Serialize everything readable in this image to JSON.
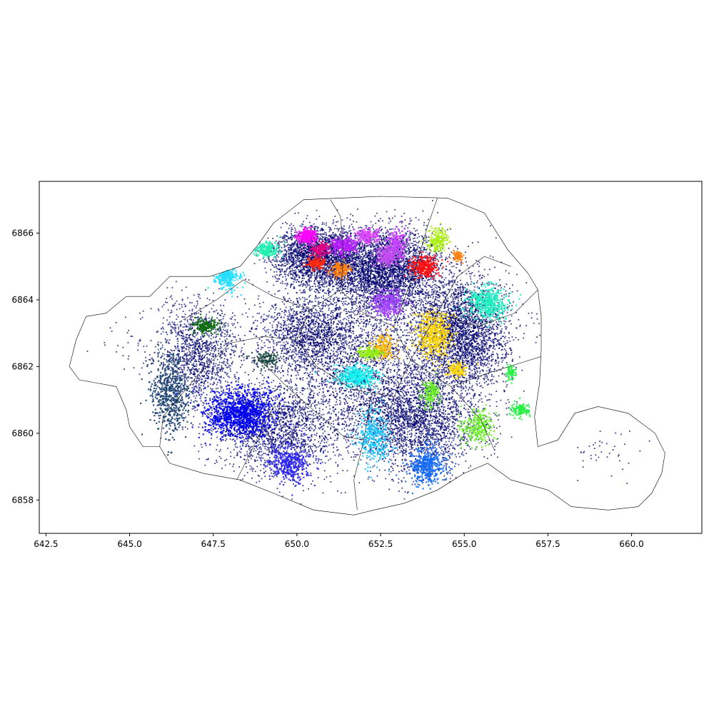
{
  "chart_data": {
    "type": "scatter",
    "title": "",
    "xlabel": "",
    "ylabel": "",
    "xlim": [
      642.3,
      662.1
    ],
    "ylim": [
      6857.0,
      6867.55
    ],
    "xticks": [
      642.5,
      645.0,
      647.5,
      650.0,
      652.5,
      655.0,
      657.5,
      660.0
    ],
    "xtick_labels": [
      "642.5",
      "645.0",
      "647.5",
      "650.0",
      "652.5",
      "655.0",
      "657.5",
      "660.0"
    ],
    "yticks": [
      6858,
      6860,
      6862,
      6864,
      6866
    ],
    "ytick_labels": [
      "6858",
      "6860",
      "6862",
      "6864",
      "6866"
    ],
    "grid": false,
    "legend": "none",
    "outline": [
      [
        650.2,
        6867.0
      ],
      [
        652.5,
        6867.1
      ],
      [
        654.5,
        6867.05
      ],
      [
        655.6,
        6866.6
      ],
      [
        656.3,
        6865.5
      ],
      [
        656.9,
        6864.8
      ],
      [
        657.2,
        6864.3
      ],
      [
        657.3,
        6863.5
      ],
      [
        657.3,
        6862.5
      ],
      [
        657.25,
        6861.5
      ],
      [
        657.1,
        6860.5
      ],
      [
        657.2,
        6859.6
      ],
      [
        657.8,
        6859.8
      ],
      [
        658.3,
        6860.6
      ],
      [
        659.0,
        6860.8
      ],
      [
        659.9,
        6860.6
      ],
      [
        660.7,
        6860.0
      ],
      [
        661.0,
        6859.4
      ],
      [
        660.9,
        6858.8
      ],
      [
        660.6,
        6858.2
      ],
      [
        660.2,
        6857.8
      ],
      [
        659.3,
        6857.7
      ],
      [
        658.2,
        6857.8
      ],
      [
        657.5,
        6858.3
      ],
      [
        656.4,
        6858.6
      ],
      [
        655.7,
        6859.1
      ],
      [
        655.0,
        6858.8
      ],
      [
        654.2,
        6858.3
      ],
      [
        653.2,
        6857.9
      ],
      [
        652.3,
        6857.7
      ],
      [
        651.7,
        6857.55
      ],
      [
        650.5,
        6857.7
      ],
      [
        649.3,
        6858.2
      ],
      [
        648.3,
        6858.6
      ],
      [
        647.2,
        6858.8
      ],
      [
        646.2,
        6859.1
      ],
      [
        645.9,
        6859.6
      ],
      [
        645.4,
        6859.6
      ],
      [
        645.0,
        6860.2
      ],
      [
        644.9,
        6860.7
      ],
      [
        644.6,
        6861.4
      ],
      [
        643.5,
        6861.6
      ],
      [
        643.2,
        6862.0
      ],
      [
        643.4,
        6862.8
      ],
      [
        643.7,
        6863.5
      ],
      [
        644.3,
        6863.6
      ],
      [
        644.9,
        6864.1
      ],
      [
        645.6,
        6864.1
      ],
      [
        646.2,
        6864.7
      ],
      [
        647.4,
        6864.7
      ],
      [
        648.3,
        6865.0
      ],
      [
        648.8,
        6865.6
      ],
      [
        649.3,
        6866.3
      ],
      [
        650.2,
        6867.0
      ]
    ],
    "inner_boundaries": [
      [
        [
          651.3,
          6864.3
        ],
        [
          652.0,
          6863.6
        ],
        [
          652.9,
          6863.2
        ],
        [
          653.4,
          6862.2
        ],
        [
          652.9,
          6861.1
        ],
        [
          651.7,
          6861.3
        ],
        [
          650.6,
          6862.0
        ],
        [
          650.0,
          6862.8
        ],
        [
          650.4,
          6863.7
        ],
        [
          651.3,
          6864.3
        ]
      ],
      [
        [
          652.2,
          6861.1
        ],
        [
          652.0,
          6859.8
        ],
        [
          651.7,
          6858.6
        ],
        [
          651.8,
          6857.7
        ]
      ],
      [
        [
          653.4,
          6862.2
        ],
        [
          654.6,
          6861.4
        ],
        [
          655.5,
          6860.4
        ],
        [
          655.9,
          6859.5
        ]
      ],
      [
        [
          650.0,
          6862.8
        ],
        [
          649.0,
          6862.9
        ],
        [
          648.0,
          6862.7
        ],
        [
          647.0,
          6861.7
        ],
        [
          646.0,
          6860.5
        ],
        [
          645.9,
          6859.6
        ]
      ],
      [
        [
          649.3,
          6860.8
        ],
        [
          648.6,
          6859.4
        ],
        [
          648.2,
          6858.6
        ]
      ],
      [
        [
          650.4,
          6863.7
        ],
        [
          649.3,
          6864.1
        ],
        [
          648.4,
          6864.6
        ],
        [
          647.6,
          6864.0
        ],
        [
          646.6,
          6863.4
        ]
      ],
      [
        [
          651.3,
          6864.3
        ],
        [
          651.4,
          6865.3
        ],
        [
          651.3,
          6866.5
        ],
        [
          651.0,
          6867.0
        ]
      ],
      [
        [
          653.4,
          6862.2
        ],
        [
          654.2,
          6863.6
        ],
        [
          654.8,
          6864.7
        ],
        [
          655.6,
          6865.3
        ],
        [
          656.4,
          6865.0
        ]
      ],
      [
        [
          652.9,
          6863.2
        ],
        [
          653.5,
          6864.8
        ],
        [
          653.9,
          6866.2
        ],
        [
          654.2,
          6867.05
        ]
      ],
      [
        [
          654.2,
          6863.6
        ],
        [
          655.4,
          6863.2
        ],
        [
          656.5,
          6863.6
        ],
        [
          657.2,
          6864.3
        ]
      ],
      [
        [
          654.6,
          6861.4
        ],
        [
          655.7,
          6861.8
        ],
        [
          657.3,
          6862.3
        ]
      ],
      [
        [
          648.8,
          6862.3
        ],
        [
          649.7,
          6861.4
        ],
        [
          650.6,
          6860.6
        ],
        [
          651.4,
          6859.9
        ],
        [
          652.0,
          6859.8
        ]
      ]
    ],
    "base_series": {
      "name": "",
      "color": "#00006e",
      "density": [
        {
          "center": [
            652.6,
            6864.9
          ],
          "spread": [
            1.6,
            1.1
          ],
          "count": 3600
        },
        {
          "center": [
            654.9,
            6863.0
          ],
          "spread": [
            1.3,
            1.5
          ],
          "count": 3000
        },
        {
          "center": [
            650.6,
            6865.3
          ],
          "spread": [
            1.2,
            0.8
          ],
          "count": 2200
        },
        {
          "center": [
            653.6,
            6860.4
          ],
          "spread": [
            1.7,
            1.4
          ],
          "count": 2400
        },
        {
          "center": [
            649.4,
            6860.1
          ],
          "spread": [
            1.7,
            1.3
          ],
          "count": 1700
        },
        {
          "center": [
            647.1,
            6862.4
          ],
          "spread": [
            1.1,
            1.4
          ],
          "count": 1300
        },
        {
          "center": [
            650.4,
            6863.0
          ],
          "spread": [
            1.4,
            1.0
          ],
          "count": 1300
        },
        {
          "center": [
            651.8,
            6862.0
          ],
          "spread": [
            2.4,
            2.2
          ],
          "count": 2200
        },
        {
          "center": [
            645.3,
            6862.7
          ],
          "spread": [
            1.2,
            0.9
          ],
          "count": 45
        },
        {
          "center": [
            659.2,
            6859.3
          ],
          "spread": [
            0.9,
            0.7
          ],
          "count": 40
        }
      ]
    },
    "clusters": [
      {
        "color": "#ff00ff",
        "center": [
          650.3,
          6865.9
        ],
        "spread": [
          0.25,
          0.2
        ],
        "count": 220
      },
      {
        "color": "#e0007f",
        "center": [
          650.7,
          6865.5
        ],
        "spread": [
          0.25,
          0.2
        ],
        "count": 170
      },
      {
        "color": "#b81cff",
        "center": [
          651.4,
          6865.6
        ],
        "spread": [
          0.35,
          0.25
        ],
        "count": 260
      },
      {
        "color": "#dd44ff",
        "center": [
          652.1,
          6865.9
        ],
        "spread": [
          0.3,
          0.2
        ],
        "count": 170
      },
      {
        "color": "#c44cee",
        "center": [
          652.7,
          6865.3
        ],
        "spread": [
          0.35,
          0.3
        ],
        "count": 260
      },
      {
        "color": "#c840ff",
        "center": [
          653.0,
          6865.7
        ],
        "spread": [
          0.25,
          0.35
        ],
        "count": 190
      },
      {
        "color": "#a040ff",
        "center": [
          652.7,
          6863.9
        ],
        "spread": [
          0.45,
          0.4
        ],
        "count": 330
      },
      {
        "color": "#ff2a10",
        "center": [
          650.6,
          6865.1
        ],
        "spread": [
          0.25,
          0.15
        ],
        "count": 160
      },
      {
        "color": "#ff7f10",
        "center": [
          651.3,
          6864.9
        ],
        "spread": [
          0.25,
          0.2
        ],
        "count": 160
      },
      {
        "color": "#ff1010",
        "center": [
          653.8,
          6865.0
        ],
        "spread": [
          0.35,
          0.3
        ],
        "count": 280
      },
      {
        "color": "#ff7f10",
        "center": [
          654.8,
          6865.3
        ],
        "spread": [
          0.15,
          0.15
        ],
        "count": 70
      },
      {
        "color": "#aaee10",
        "center": [
          654.2,
          6865.8
        ],
        "spread": [
          0.3,
          0.3
        ],
        "count": 190
      },
      {
        "color": "#20f0b0",
        "center": [
          649.1,
          6865.5
        ],
        "spread": [
          0.35,
          0.2
        ],
        "count": 200
      },
      {
        "color": "#22ddff",
        "center": [
          647.9,
          6864.7
        ],
        "spread": [
          0.35,
          0.35
        ],
        "count": 240
      },
      {
        "color": "#0e6b0e",
        "center": [
          647.3,
          6863.2
        ],
        "spread": [
          0.35,
          0.2
        ],
        "count": 170
      },
      {
        "color": "#1c4270",
        "center": [
          646.2,
          6861.2
        ],
        "spread": [
          0.5,
          1.1
        ],
        "count": 580
      },
      {
        "color": "#1a4a40",
        "center": [
          649.1,
          6862.2
        ],
        "spread": [
          0.35,
          0.2
        ],
        "count": 120
      },
      {
        "color": "#0000ee",
        "center": [
          648.3,
          6860.6
        ],
        "spread": [
          0.95,
          0.65
        ],
        "count": 1100
      },
      {
        "color": "#2a22ee",
        "center": [
          649.8,
          6859.1
        ],
        "spread": [
          0.55,
          0.5
        ],
        "count": 380
      },
      {
        "color": "#10eeee",
        "center": [
          651.8,
          6861.7
        ],
        "spread": [
          0.55,
          0.3
        ],
        "count": 380
      },
      {
        "color": "#18c8ff",
        "center": [
          652.3,
          6859.9
        ],
        "spread": [
          0.4,
          0.8
        ],
        "count": 340
      },
      {
        "color": "#1268f5",
        "center": [
          653.9,
          6859.0
        ],
        "spread": [
          0.45,
          0.5
        ],
        "count": 420
      },
      {
        "color": "#ffd700",
        "center": [
          654.1,
          6862.9
        ],
        "spread": [
          0.5,
          0.6
        ],
        "count": 480
      },
      {
        "color": "#ffd700",
        "center": [
          654.8,
          6861.9
        ],
        "spread": [
          0.25,
          0.2
        ],
        "count": 120
      },
      {
        "color": "#ffb300",
        "center": [
          652.6,
          6862.6
        ],
        "spread": [
          0.3,
          0.35
        ],
        "count": 170
      },
      {
        "color": "#90ee10",
        "center": [
          652.2,
          6862.4
        ],
        "spread": [
          0.35,
          0.15
        ],
        "count": 150
      },
      {
        "color": "#20f0c0",
        "center": [
          655.7,
          6863.9
        ],
        "spread": [
          0.55,
          0.45
        ],
        "count": 460
      },
      {
        "color": "#22ee40",
        "center": [
          656.4,
          6861.8
        ],
        "spread": [
          0.15,
          0.2
        ],
        "count": 70
      },
      {
        "color": "#22ee40",
        "center": [
          656.7,
          6860.7
        ],
        "spread": [
          0.25,
          0.2
        ],
        "count": 120
      },
      {
        "color": "#66ee22",
        "center": [
          654.0,
          6861.2
        ],
        "spread": [
          0.25,
          0.35
        ],
        "count": 160
      },
      {
        "color": "#66ee22",
        "center": [
          655.4,
          6860.2
        ],
        "spread": [
          0.45,
          0.45
        ],
        "count": 260
      }
    ]
  }
}
